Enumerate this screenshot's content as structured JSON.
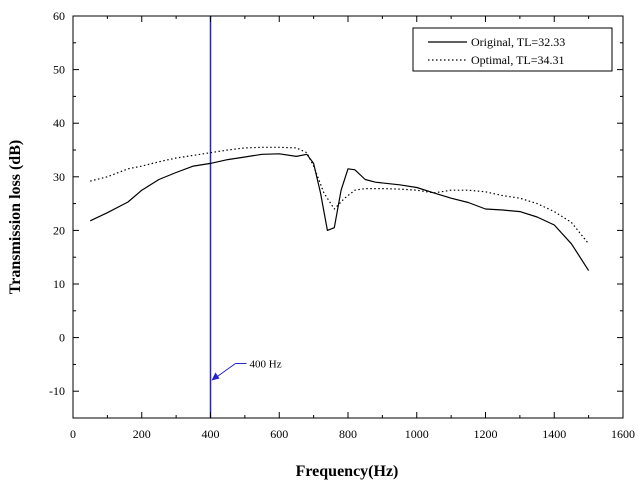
{
  "chart_data": {
    "type": "line",
    "xlabel": "Frequency(Hz)",
    "ylabel": "Transmission loss (dB)",
    "xlim": [
      0,
      1600
    ],
    "ylim": [
      -15,
      60
    ],
    "xticks": [
      0,
      200,
      400,
      600,
      800,
      1000,
      1200,
      1400,
      1600
    ],
    "yticks": [
      -10,
      0,
      10,
      20,
      30,
      40,
      50,
      60
    ],
    "grid": false,
    "legend_position": "top-right",
    "series": [
      {
        "name": "Original, TL=32.33",
        "style": "solid",
        "color": "#000000",
        "x": [
          50,
          100,
          160,
          200,
          250,
          300,
          350,
          400,
          450,
          500,
          550,
          600,
          650,
          680,
          700,
          720,
          740,
          760,
          780,
          800,
          820,
          850,
          880,
          950,
          1000,
          1050,
          1100,
          1150,
          1200,
          1250,
          1300,
          1350,
          1400,
          1450,
          1480,
          1500
        ],
        "y": [
          21.8,
          23.3,
          25.3,
          27.5,
          29.5,
          30.8,
          32.0,
          32.5,
          33.2,
          33.7,
          34.2,
          34.3,
          33.8,
          34.2,
          32.5,
          27.0,
          20.0,
          20.5,
          27.5,
          31.5,
          31.3,
          29.5,
          29.0,
          28.5,
          28.0,
          27.0,
          26.0,
          25.2,
          24.0,
          23.8,
          23.5,
          22.5,
          21.0,
          17.5,
          14.5,
          12.5
        ]
      },
      {
        "name": "Optimal, TL=34.31",
        "style": "dotted",
        "color": "#000000",
        "x": [
          50,
          100,
          160,
          200,
          250,
          300,
          350,
          400,
          450,
          500,
          550,
          600,
          650,
          680,
          700,
          730,
          760,
          790,
          820,
          850,
          900,
          950,
          1000,
          1050,
          1100,
          1150,
          1200,
          1250,
          1300,
          1350,
          1400,
          1450,
          1500
        ],
        "y": [
          29.2,
          30.0,
          31.5,
          32.0,
          32.8,
          33.5,
          34.0,
          34.5,
          35.0,
          35.4,
          35.5,
          35.5,
          35.4,
          34.5,
          32.0,
          27.0,
          24.0,
          26.0,
          27.5,
          27.8,
          27.8,
          27.7,
          27.5,
          27.0,
          27.5,
          27.5,
          27.2,
          26.5,
          26.0,
          25.0,
          23.5,
          21.5,
          17.5
        ]
      }
    ],
    "vline": {
      "x": 400,
      "color": "#2323c8"
    },
    "annotation": {
      "text": "400 Hz",
      "x": 400,
      "y": -8
    }
  }
}
